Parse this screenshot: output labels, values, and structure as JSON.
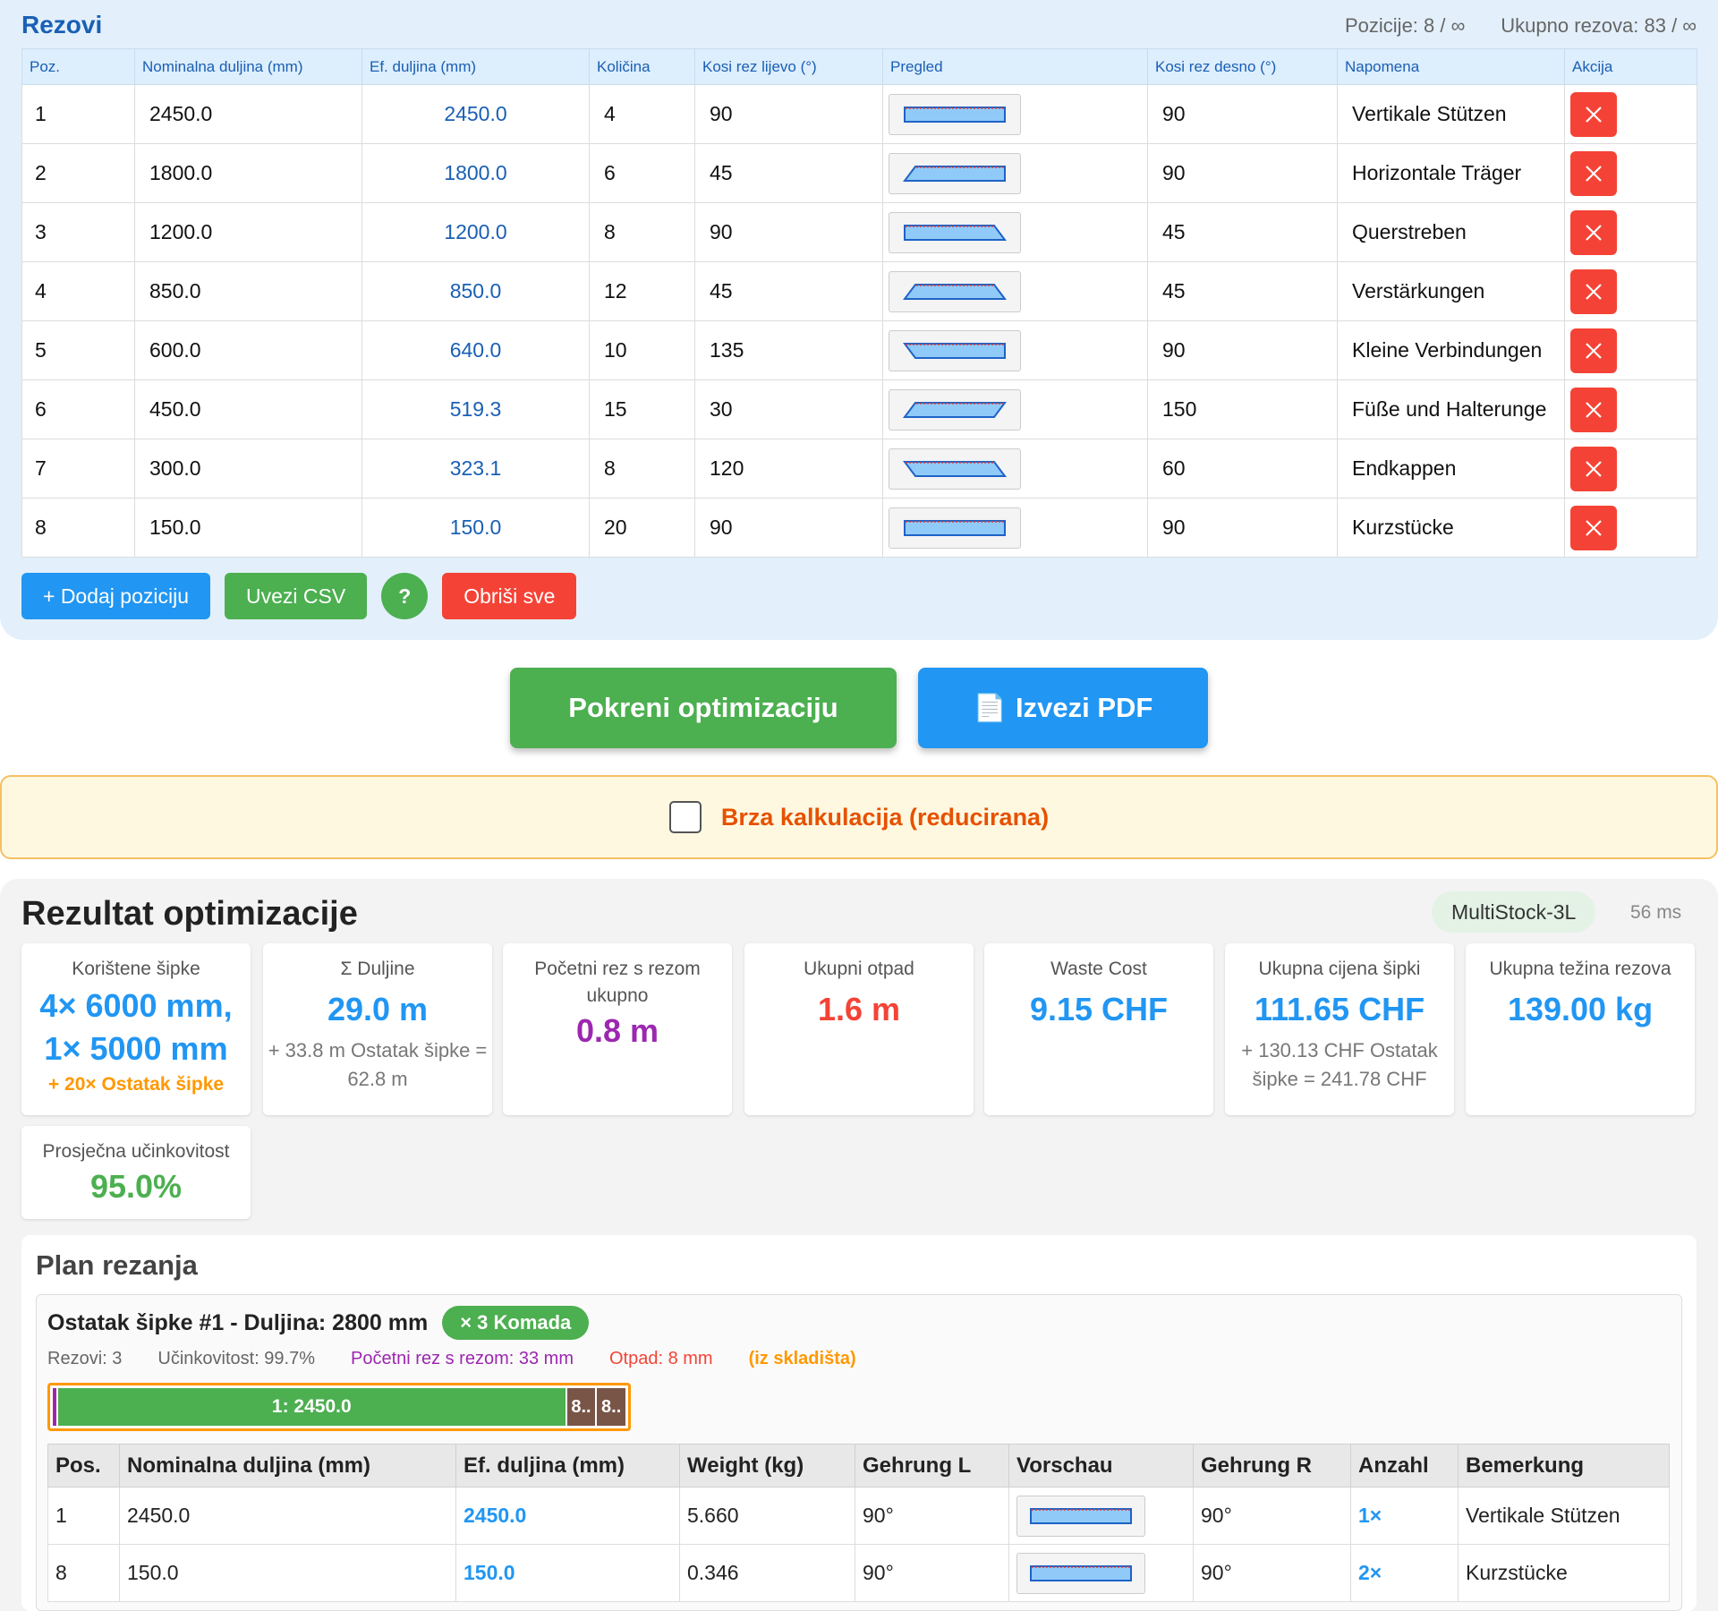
{
  "rezovi": {
    "title": "Rezovi",
    "positions_stat": "Pozicije: 8 / ∞",
    "total_stat": "Ukupno rezova: 83 / ∞",
    "columns": [
      "Poz.",
      "Nominalna duljina (mm)",
      "Ef. duljina (mm)",
      "Količina",
      "Kosi rez lijevo (°)",
      "Pregled",
      "Kosi rez desno (°)",
      "Napomena",
      "Akcija"
    ],
    "rows": [
      {
        "pos": "1",
        "nominal": "2450.0",
        "eff": "2450.0",
        "qty": "4",
        "left": "90",
        "right": "90",
        "note": "Vertikale Stützen"
      },
      {
        "pos": "2",
        "nominal": "1800.0",
        "eff": "1800.0",
        "qty": "6",
        "left": "45",
        "right": "90",
        "note": "Horizontale Träger"
      },
      {
        "pos": "3",
        "nominal": "1200.0",
        "eff": "1200.0",
        "qty": "8",
        "left": "90",
        "right": "45",
        "note": "Querstreben"
      },
      {
        "pos": "4",
        "nominal": "850.0",
        "eff": "850.0",
        "qty": "12",
        "left": "45",
        "right": "45",
        "note": "Verstärkungen"
      },
      {
        "pos": "5",
        "nominal": "600.0",
        "eff": "640.0",
        "qty": "10",
        "left": "135",
        "right": "90",
        "note": "Kleine Verbindungen"
      },
      {
        "pos": "6",
        "nominal": "450.0",
        "eff": "519.3",
        "qty": "15",
        "left": "30",
        "right": "150",
        "note": "Füße und Halterunge"
      },
      {
        "pos": "7",
        "nominal": "300.0",
        "eff": "323.1",
        "qty": "8",
        "left": "120",
        "right": "60",
        "note": "Endkappen"
      },
      {
        "pos": "8",
        "nominal": "150.0",
        "eff": "150.0",
        "qty": "20",
        "left": "90",
        "right": "90",
        "note": "Kurzstücke"
      }
    ],
    "buttons": {
      "add": "+ Dodaj poziciju",
      "import_csv": "Uvezi CSV",
      "help": "?",
      "clear": "Obriši sve"
    },
    "delete_icon": "close-icon"
  },
  "actions": {
    "optimize": "Pokreni optimizaciju",
    "export_pdf": "Izvezi PDF",
    "pdf_icon": "📄"
  },
  "quick_calc": {
    "label": "Brza kalkulacija (reducirana)",
    "checked": false
  },
  "results": {
    "title": "Rezultat optimizacije",
    "algorithm": "MultiStock-3L",
    "time": "56 ms",
    "cards": {
      "bars_used": {
        "label": "Korištene šipke",
        "value_line1": "4× 6000 mm,",
        "value_line2": "1× 5000 mm",
        "extra": "+ 20× Ostatak šipke"
      },
      "sum_lengths": {
        "label": "Σ Duljine",
        "value": "29.0 m",
        "sub": "+ 33.8 m Ostatak šipke = 62.8 m"
      },
      "start_cut": {
        "label": "Početni rez s rezom ukupno",
        "value": "0.8 m"
      },
      "total_waste": {
        "label": "Ukupni otpad",
        "value": "1.6 m"
      },
      "waste_cost": {
        "label": "Waste Cost",
        "value": "9.15 CHF"
      },
      "total_price": {
        "label": "Ukupna cijena šipki",
        "value": "111.65 CHF",
        "sub": "+ 130.13 CHF Ostatak šipke = 241.78 CHF"
      },
      "total_weight": {
        "label": "Ukupna težina rezova",
        "value": "139.00 kg"
      },
      "efficiency": {
        "label": "Prosječna učinkovitost",
        "value": "95.0%"
      }
    },
    "plan": {
      "title": "Plan rezanja",
      "bar": {
        "title": "Ostatak šipke #1 - Duljina: 2800 mm",
        "count_badge": "× 3 Komada",
        "cuts": "Rezovi: 3",
        "efficiency": "Učinkovitost: 99.7%",
        "start_cut": "Početni rez s rezom: 33 mm",
        "waste": "Otpad: 8 mm",
        "source": "(iz skladišta)",
        "segments": {
          "main": "1: 2450.0",
          "small1": "8..",
          "small2": "8.."
        }
      },
      "columns": [
        "Pos.",
        "Nominalna duljina (mm)",
        "Ef. duljina (mm)",
        "Weight (kg)",
        "Gehrung L",
        "Vorschau",
        "Gehrung R",
        "Anzahl",
        "Bemerkung"
      ],
      "rows": [
        {
          "pos": "1",
          "nominal": "2450.0",
          "eff": "2450.0",
          "weight": "5.660",
          "gl": "90°",
          "gr": "90°",
          "count": "1×",
          "note": "Vertikale Stützen"
        },
        {
          "pos": "8",
          "nominal": "150.0",
          "eff": "150.0",
          "weight": "0.346",
          "gl": "90°",
          "gr": "90°",
          "count": "2×",
          "note": "Kurzstücke"
        }
      ]
    }
  },
  "colors": {
    "accent_blue": "#2196f3",
    "green": "#4caf50",
    "red": "#f44336",
    "purple": "#9c27b0",
    "orange": "#ff9800"
  }
}
